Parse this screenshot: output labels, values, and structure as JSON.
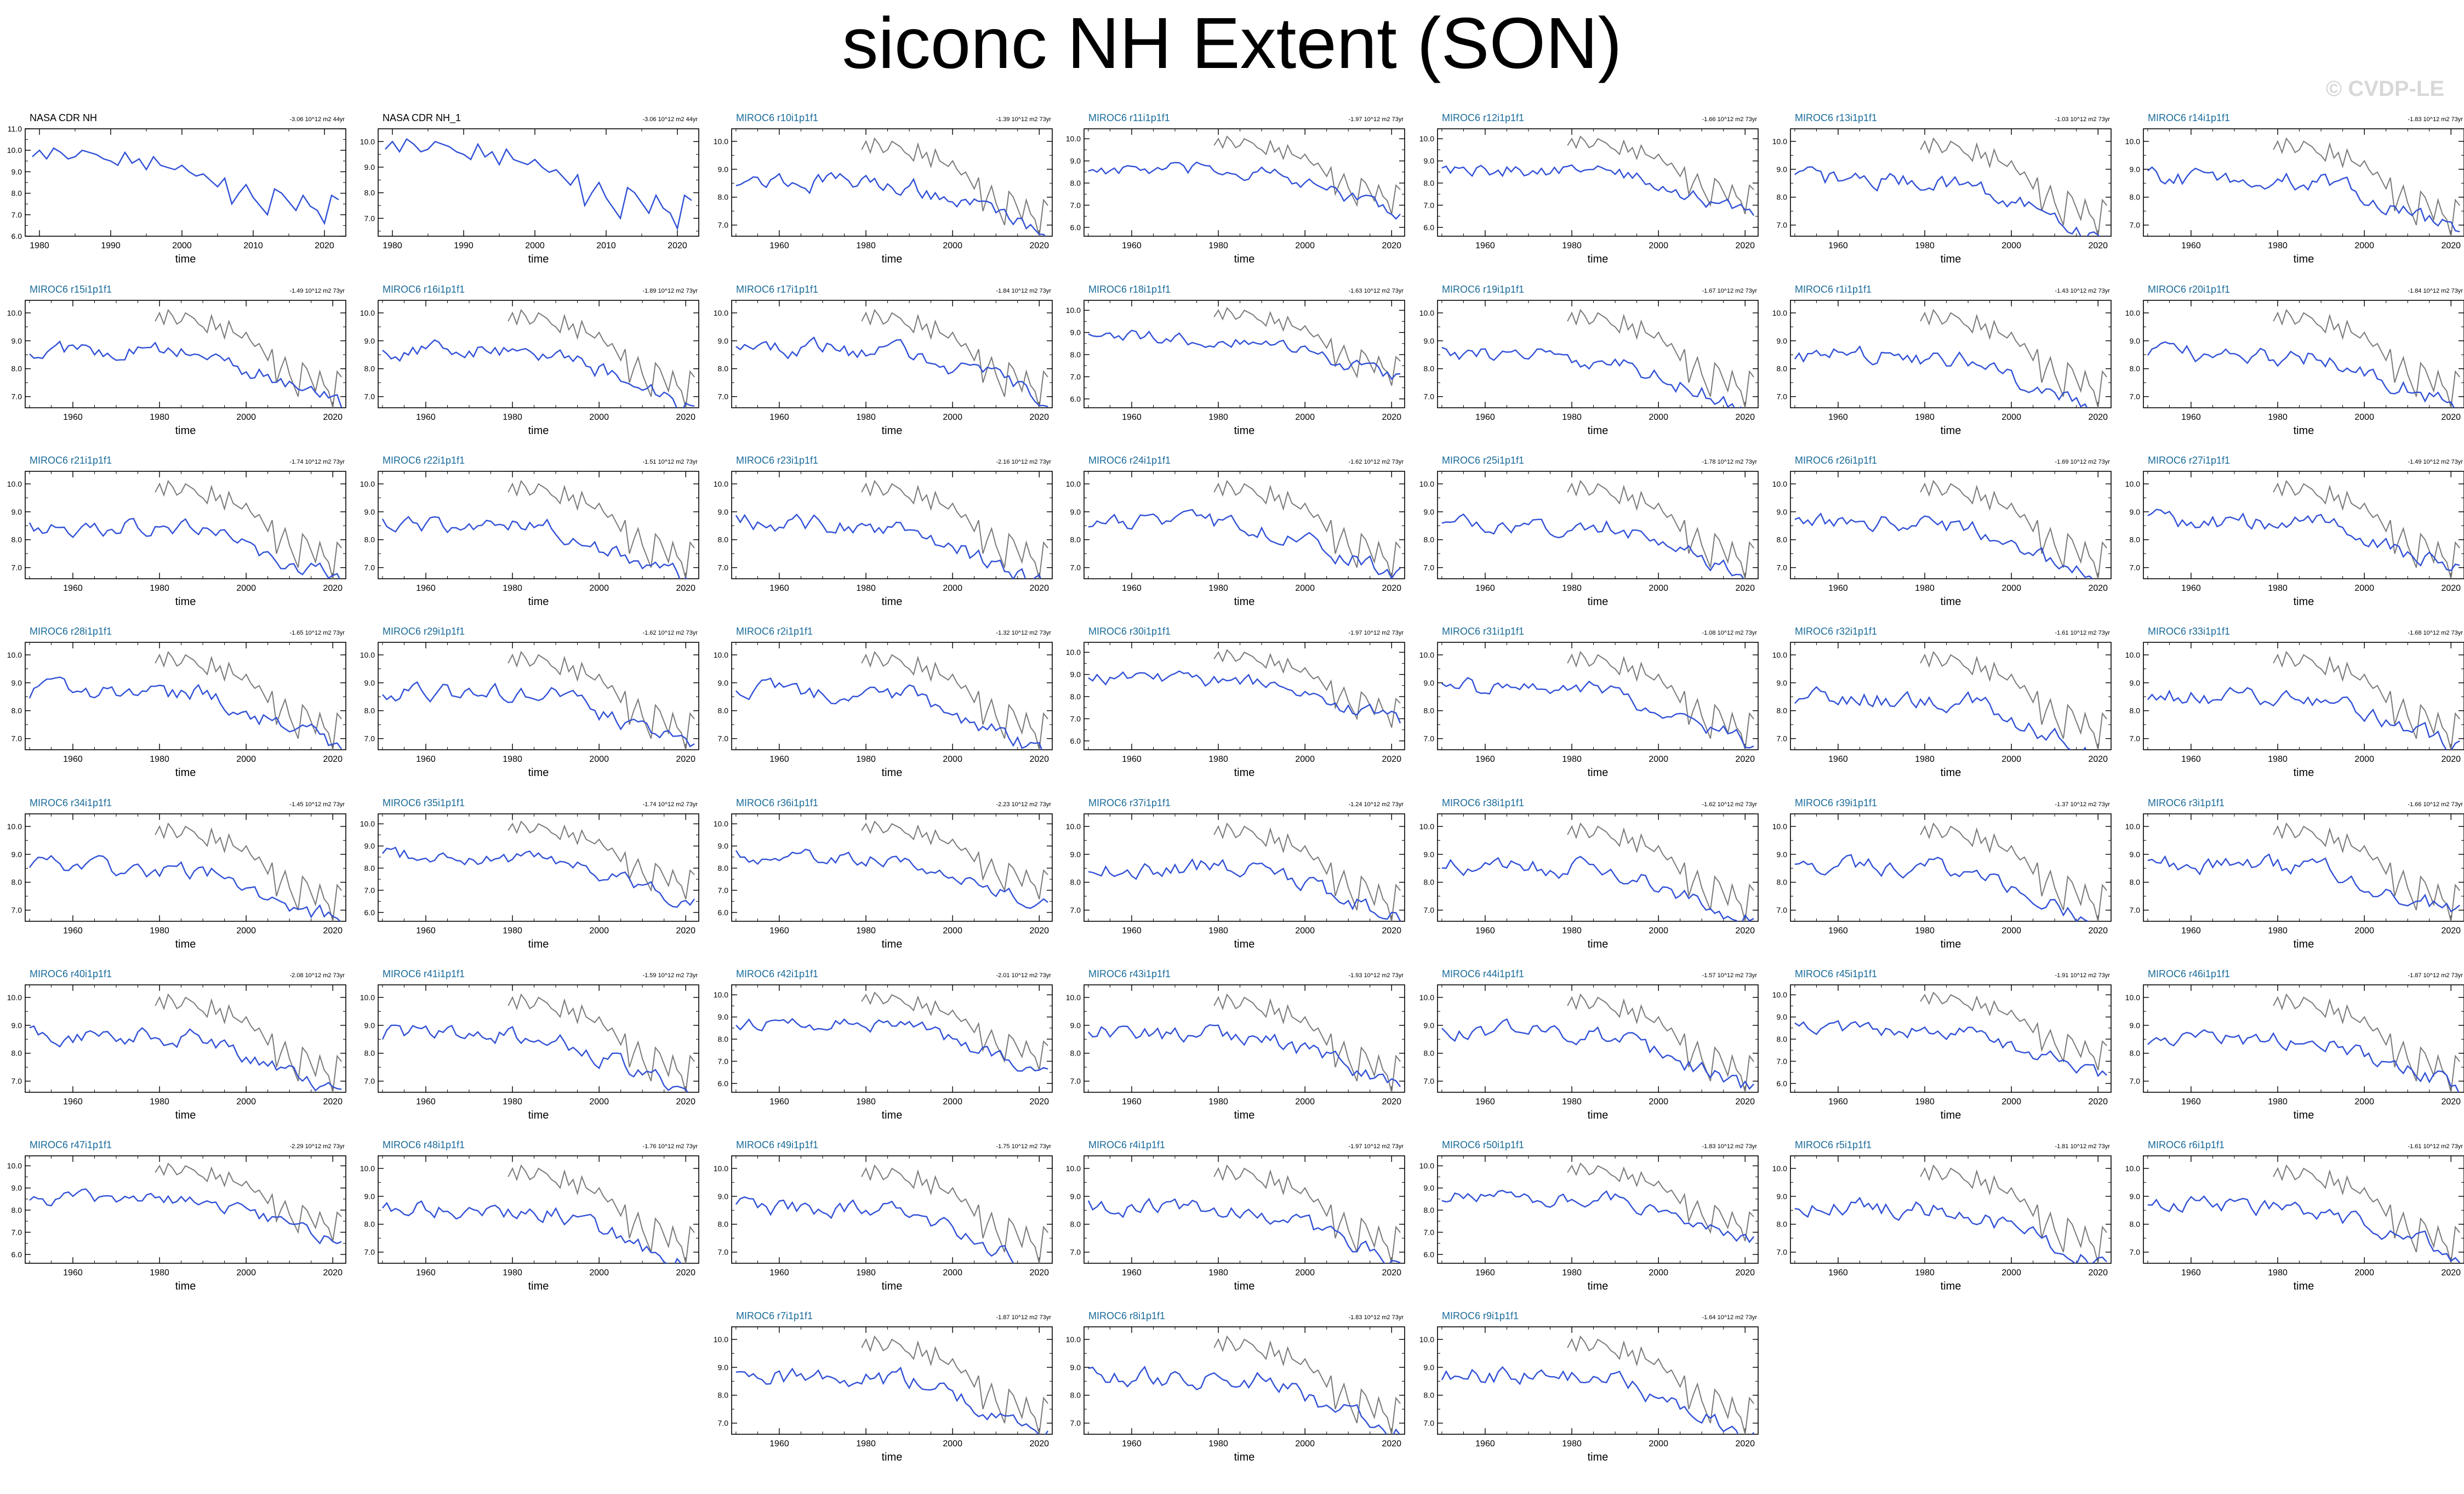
{
  "title": "siconc NH Extent (SON)",
  "watermark": "© CVDP-LE",
  "colors": {
    "model": "#3050d6",
    "obs": "#7a7a7a",
    "model_title": "#1a6b9a",
    "obs_title": "#000000"
  },
  "chart_data": {
    "type": "line",
    "xlabel": "time",
    "obs_panels": [
      {
        "title": "NASA CDR NH",
        "trend": "-3.06 10^12 m2 44yr",
        "xticks": [
          1980,
          1990,
          2000,
          2010,
          2020
        ],
        "xlim": [
          1978,
          2023
        ],
        "yticks": [
          6.0,
          7.0,
          8.0,
          9.0,
          10.0,
          11.0
        ],
        "ylim": [
          6.0,
          11.0
        ]
      },
      {
        "title": "NASA CDR NH_1",
        "trend": "-3.06 10^12 m2 44yr",
        "xticks": [
          1980,
          1990,
          2000,
          2010,
          2020
        ],
        "xlim": [
          1978,
          2023
        ],
        "yticks": [
          7.0,
          8.0,
          9.0,
          10.0
        ],
        "ylim": [
          6.3,
          10.5
        ]
      }
    ],
    "model_xticks": [
      1960,
      1980,
      2000,
      2020
    ],
    "model_xlim": [
      1949,
      2023
    ],
    "model_panels": [
      {
        "title": "MIROC6 r10i1p1f1",
        "trend": "-1.39 10^12 m2 73yr",
        "yticks": [
          7.0,
          8.0,
          9.0,
          10.0
        ]
      },
      {
        "title": "MIROC6 r11i1p1f1",
        "trend": "-1.97 10^12 m2 73yr",
        "yticks": [
          6.0,
          7.0,
          8.0,
          9.0,
          10.0
        ]
      },
      {
        "title": "MIROC6 r12i1p1f1",
        "trend": "-1.66 10^12 m2 73yr",
        "yticks": [
          6.0,
          7.0,
          8.0,
          9.0,
          10.0
        ]
      },
      {
        "title": "MIROC6 r13i1p1f1",
        "trend": "-1.03 10^12 m2 73yr",
        "yticks": [
          7.0,
          8.0,
          9.0,
          10.0
        ]
      },
      {
        "title": "MIROC6 r14i1p1f1",
        "trend": "-1.83 10^12 m2 73yr",
        "yticks": [
          7.0,
          8.0,
          9.0,
          10.0
        ]
      },
      {
        "title": "MIROC6 r15i1p1f1",
        "trend": "-1.49 10^12 m2 73yr",
        "yticks": [
          7.0,
          8.0,
          9.0,
          10.0
        ]
      },
      {
        "title": "MIROC6 r16i1p1f1",
        "trend": "-1.89 10^12 m2 73yr",
        "yticks": [
          7.0,
          8.0,
          9.0,
          10.0
        ]
      },
      {
        "title": "MIROC6 r17i1p1f1",
        "trend": "-1.84 10^12 m2 73yr",
        "yticks": [
          7.0,
          8.0,
          9.0,
          10.0
        ]
      },
      {
        "title": "MIROC6 r18i1p1f1",
        "trend": "-1.63 10^12 m2 73yr",
        "yticks": [
          6.0,
          7.0,
          8.0,
          9.0,
          10.0
        ]
      },
      {
        "title": "MIROC6 r19i1p1f1",
        "trend": "-1.67 10^12 m2 73yr",
        "yticks": [
          7.0,
          8.0,
          9.0,
          10.0
        ]
      },
      {
        "title": "MIROC6 r1i1p1f1",
        "trend": "-1.43 10^12 m2 73yr",
        "yticks": [
          7.0,
          8.0,
          9.0,
          10.0
        ]
      },
      {
        "title": "MIROC6 r20i1p1f1",
        "trend": "-1.84 10^12 m2 73yr",
        "yticks": [
          7.0,
          8.0,
          9.0,
          10.0
        ]
      },
      {
        "title": "MIROC6 r21i1p1f1",
        "trend": "-1.74 10^12 m2 73yr",
        "yticks": [
          7.0,
          8.0,
          9.0,
          10.0
        ]
      },
      {
        "title": "MIROC6 r22i1p1f1",
        "trend": "-1.51 10^12 m2 73yr",
        "yticks": [
          7.0,
          8.0,
          9.0,
          10.0
        ]
      },
      {
        "title": "MIROC6 r23i1p1f1",
        "trend": "-2.16 10^12 m2 73yr",
        "yticks": [
          7.0,
          8.0,
          9.0,
          10.0
        ]
      },
      {
        "title": "MIROC6 r24i1p1f1",
        "trend": "-1.62 10^12 m2 73yr",
        "yticks": [
          7.0,
          8.0,
          9.0,
          10.0
        ]
      },
      {
        "title": "MIROC6 r25i1p1f1",
        "trend": "-1.78 10^12 m2 73yr",
        "yticks": [
          7.0,
          8.0,
          9.0,
          10.0
        ]
      },
      {
        "title": "MIROC6 r26i1p1f1",
        "trend": "-1.69 10^12 m2 73yr",
        "yticks": [
          7.0,
          8.0,
          9.0,
          10.0
        ]
      },
      {
        "title": "MIROC6 r27i1p1f1",
        "trend": "-1.49 10^12 m2 73yr",
        "yticks": [
          7.0,
          8.0,
          9.0,
          10.0
        ]
      },
      {
        "title": "MIROC6 r28i1p1f1",
        "trend": "-1.65 10^12 m2 73yr",
        "yticks": [
          7.0,
          8.0,
          9.0,
          10.0
        ]
      },
      {
        "title": "MIROC6 r29i1p1f1",
        "trend": "-1.62 10^12 m2 73yr",
        "yticks": [
          7.0,
          8.0,
          9.0,
          10.0
        ]
      },
      {
        "title": "MIROC6 r2i1p1f1",
        "trend": "-1.32 10^12 m2 73yr",
        "yticks": [
          7.0,
          8.0,
          9.0,
          10.0
        ]
      },
      {
        "title": "MIROC6 r30i1p1f1",
        "trend": "-1.97 10^12 m2 73yr",
        "yticks": [
          6.0,
          7.0,
          8.0,
          9.0,
          10.0
        ]
      },
      {
        "title": "MIROC6 r31i1p1f1",
        "trend": "-1.08 10^12 m2 73yr",
        "yticks": [
          7.0,
          8.0,
          9.0,
          10.0
        ]
      },
      {
        "title": "MIROC6 r32i1p1f1",
        "trend": "-1.61 10^12 m2 73yr",
        "yticks": [
          7.0,
          8.0,
          9.0,
          10.0
        ]
      },
      {
        "title": "MIROC6 r33i1p1f1",
        "trend": "-1.68 10^12 m2 73yr",
        "yticks": [
          7.0,
          8.0,
          9.0,
          10.0
        ]
      },
      {
        "title": "MIROC6 r34i1p1f1",
        "trend": "-1.45 10^12 m2 73yr",
        "yticks": [
          7.0,
          8.0,
          9.0,
          10.0
        ]
      },
      {
        "title": "MIROC6 r35i1p1f1",
        "trend": "-1.74 10^12 m2 73yr",
        "yticks": [
          6.0,
          7.0,
          8.0,
          9.0,
          10.0
        ]
      },
      {
        "title": "MIROC6 r36i1p1f1",
        "trend": "-2.23 10^12 m2 73yr",
        "yticks": [
          6.0,
          7.0,
          8.0,
          9.0,
          10.0
        ]
      },
      {
        "title": "MIROC6 r37i1p1f1",
        "trend": "-1.24 10^12 m2 73yr",
        "yticks": [
          7.0,
          8.0,
          9.0,
          10.0
        ]
      },
      {
        "title": "MIROC6 r38i1p1f1",
        "trend": "-1.62 10^12 m2 73yr",
        "yticks": [
          7.0,
          8.0,
          9.0,
          10.0
        ]
      },
      {
        "title": "MIROC6 r39i1p1f1",
        "trend": "-1.37 10^12 m2 73yr",
        "yticks": [
          7.0,
          8.0,
          9.0,
          10.0
        ]
      },
      {
        "title": "MIROC6 r3i1p1f1",
        "trend": "-1.66 10^12 m2 73yr",
        "yticks": [
          7.0,
          8.0,
          9.0,
          10.0
        ]
      },
      {
        "title": "MIROC6 r40i1p1f1",
        "trend": "-2.08 10^12 m2 73yr",
        "yticks": [
          7.0,
          8.0,
          9.0,
          10.0
        ]
      },
      {
        "title": "MIROC6 r41i1p1f1",
        "trend": "-1.59 10^12 m2 73yr",
        "yticks": [
          7.0,
          8.0,
          9.0,
          10.0
        ]
      },
      {
        "title": "MIROC6 r42i1p1f1",
        "trend": "-2.01 10^12 m2 73yr",
        "yticks": [
          6.0,
          7.0,
          8.0,
          9.0,
          10.0
        ]
      },
      {
        "title": "MIROC6 r43i1p1f1",
        "trend": "-1.93 10^12 m2 73yr",
        "yticks": [
          7.0,
          8.0,
          9.0,
          10.0
        ]
      },
      {
        "title": "MIROC6 r44i1p1f1",
        "trend": "-1.57 10^12 m2 73yr",
        "yticks": [
          7.0,
          8.0,
          9.0,
          10.0
        ]
      },
      {
        "title": "MIROC6 r45i1p1f1",
        "trend": "-1.91 10^12 m2 73yr",
        "yticks": [
          6.0,
          7.0,
          8.0,
          9.0,
          10.0
        ]
      },
      {
        "title": "MIROC6 r46i1p1f1",
        "trend": "-1.87 10^12 m2 73yr",
        "yticks": [
          7.0,
          8.0,
          9.0,
          10.0
        ]
      },
      {
        "title": "MIROC6 r47i1p1f1",
        "trend": "-2.29 10^12 m2 73yr",
        "yticks": [
          6.0,
          7.0,
          8.0,
          9.0,
          10.0
        ]
      },
      {
        "title": "MIROC6 r48i1p1f1",
        "trend": "-1.76 10^12 m2 73yr",
        "yticks": [
          7.0,
          8.0,
          9.0,
          10.0
        ]
      },
      {
        "title": "MIROC6 r49i1p1f1",
        "trend": "-1.75 10^12 m2 73yr",
        "yticks": [
          7.0,
          8.0,
          9.0,
          10.0
        ]
      },
      {
        "title": "MIROC6 r4i1p1f1",
        "trend": "-1.97 10^12 m2 73yr",
        "yticks": [
          7.0,
          8.0,
          9.0,
          10.0
        ]
      },
      {
        "title": "MIROC6 r50i1p1f1",
        "trend": "-1.83 10^12 m2 73yr",
        "yticks": [
          6.0,
          7.0,
          8.0,
          9.0,
          10.0
        ]
      },
      {
        "title": "MIROC6 r5i1p1f1",
        "trend": "-1.81 10^12 m2 73yr",
        "yticks": [
          7.0,
          8.0,
          9.0,
          10.0
        ]
      },
      {
        "title": "MIROC6 r6i1p1f1",
        "trend": "-1.61 10^12 m2 73yr",
        "yticks": [
          7.0,
          8.0,
          9.0,
          10.0
        ]
      },
      {
        "title": "MIROC6 r7i1p1f1",
        "trend": "-1.87 10^12 m2 73yr",
        "yticks": [
          7.0,
          8.0,
          9.0,
          10.0
        ]
      },
      {
        "title": "MIROC6 r8i1p1f1",
        "trend": "-1.83 10^12 m2 73yr",
        "yticks": [
          7.0,
          8.0,
          9.0,
          10.0
        ]
      },
      {
        "title": "MIROC6 r9i1p1f1",
        "trend": "-1.64 10^12 m2 73yr",
        "yticks": [
          7.0,
          8.0,
          9.0,
          10.0
        ]
      }
    ],
    "obs_series": {
      "name": "NASA CDR NH",
      "x": [
        1979,
        1980,
        1981,
        1982,
        1983,
        1984,
        1985,
        1986,
        1987,
        1988,
        1989,
        1990,
        1991,
        1992,
        1993,
        1994,
        1995,
        1996,
        1997,
        1998,
        1999,
        2000,
        2001,
        2002,
        2003,
        2004,
        2005,
        2006,
        2007,
        2008,
        2009,
        2010,
        2011,
        2012,
        2013,
        2014,
        2015,
        2016,
        2017,
        2018,
        2019,
        2020,
        2021,
        2022
      ],
      "y": [
        9.7,
        10.0,
        9.6,
        10.1,
        9.9,
        9.6,
        9.7,
        10.0,
        9.9,
        9.8,
        9.6,
        9.5,
        9.3,
        9.9,
        9.4,
        9.6,
        9.1,
        9.7,
        9.3,
        9.2,
        9.1,
        9.3,
        9.0,
        8.8,
        8.9,
        8.6,
        8.3,
        8.7,
        7.5,
        8.0,
        8.4,
        7.8,
        7.4,
        7.0,
        8.2,
        8.0,
        7.6,
        7.2,
        7.9,
        7.4,
        7.2,
        6.6,
        7.9,
        7.7
      ]
    },
    "model_years": [
      1950,
      2022
    ]
  }
}
